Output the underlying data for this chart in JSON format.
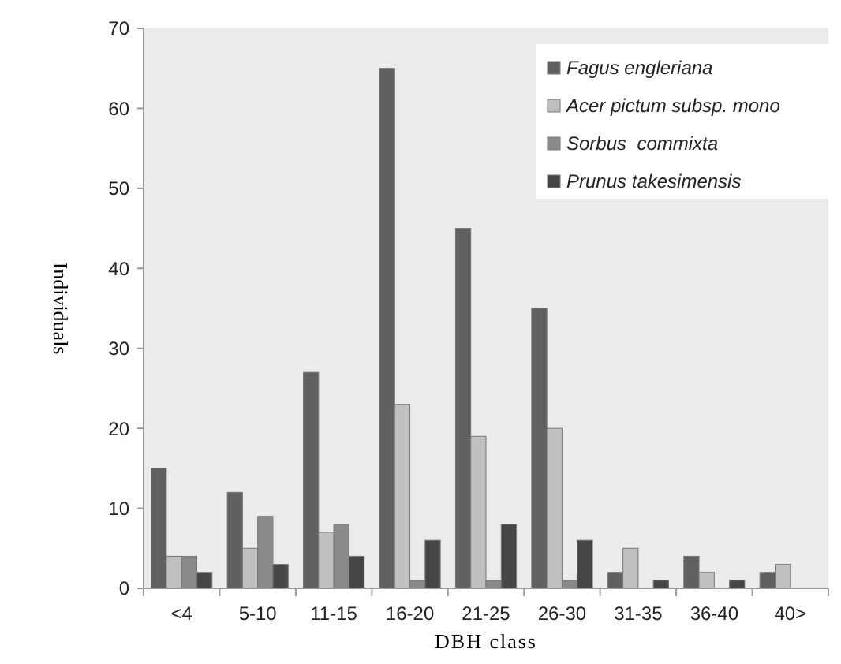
{
  "chart_data": {
    "type": "bar",
    "xlabel": "DBH class",
    "ylabel": "Individuals",
    "categories": [
      "<4",
      "5-10",
      "11-15",
      "16-20",
      "21-25",
      "26-30",
      "31-35",
      "36-40",
      "40>"
    ],
    "series": [
      {
        "name": "Fagus engleriana",
        "color": "#606060",
        "values": [
          15,
          12,
          27,
          65,
          45,
          35,
          2,
          4,
          2
        ]
      },
      {
        "name": "Acer pictum subsp. mono",
        "color": "#c0c0c0",
        "values": [
          4,
          5,
          7,
          23,
          19,
          20,
          5,
          2,
          3
        ]
      },
      {
        "name": "Sorbus  commixta",
        "color": "#8a8a8a",
        "values": [
          4,
          9,
          8,
          1,
          1,
          1,
          0,
          0,
          null
        ]
      },
      {
        "name": "Prunus takesimensis",
        "color": "#464646",
        "values": [
          2,
          3,
          4,
          6,
          8,
          6,
          1,
          1,
          null
        ]
      }
    ],
    "ylim": [
      0,
      70
    ],
    "yticks": [
      0,
      10,
      20,
      30,
      40,
      50,
      60,
      70
    ],
    "grid": false,
    "legend": "top right"
  }
}
